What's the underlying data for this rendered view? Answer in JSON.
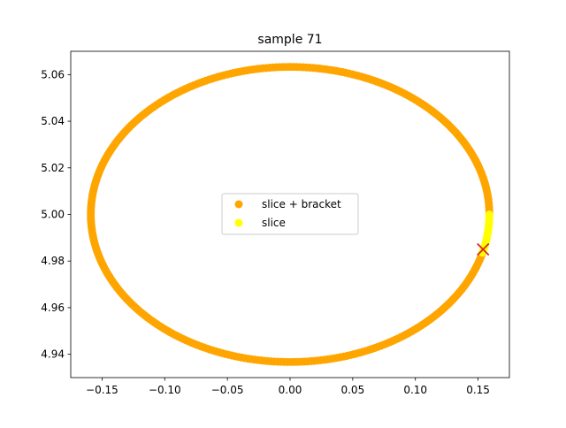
{
  "chart_data": {
    "type": "scatter",
    "title": "sample 71",
    "xlabel": "",
    "ylabel": "",
    "xlim": [
      -0.175,
      0.175
    ],
    "ylim": [
      4.93,
      5.07
    ],
    "xticks": [
      -0.15,
      -0.1,
      -0.05,
      0.0,
      0.05,
      0.1,
      0.15
    ],
    "xtick_labels": [
      "−0.15",
      "−0.10",
      "−0.05",
      "0.00",
      "0.05",
      "0.10",
      "0.15"
    ],
    "yticks": [
      4.94,
      4.96,
      4.98,
      5.0,
      5.02,
      5.04,
      5.06
    ],
    "ytick_labels": [
      "4.94",
      "4.96",
      "4.98",
      "5.00",
      "5.02",
      "5.04",
      "5.06"
    ],
    "grid": false,
    "legend_position": "center",
    "series": [
      {
        "name": "slice + bracket",
        "color": "#ffa500",
        "shape": "ellipse-arc",
        "center": [
          0.0,
          5.0
        ],
        "radius_x": 0.159,
        "radius_y": 0.0633,
        "angle_start_deg": 0,
        "angle_end_deg": 345,
        "n_points": 360
      },
      {
        "name": "slice",
        "color": "#ffff00",
        "shape": "ellipse-arc",
        "center": [
          0.0,
          5.0
        ],
        "radius_x": 0.159,
        "radius_y": 0.0633,
        "angle_start_deg": 345,
        "angle_end_deg": 360,
        "n_points": 20
      }
    ],
    "markers": [
      {
        "label": "x-marker",
        "x": 0.154,
        "y": 4.985,
        "color": "#d62728",
        "symbol": "x"
      }
    ]
  }
}
